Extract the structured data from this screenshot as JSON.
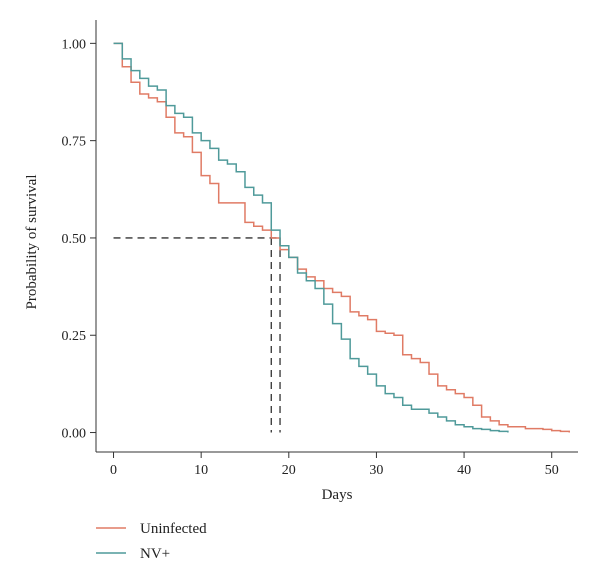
{
  "chart_data": {
    "type": "line",
    "step": true,
    "title": "",
    "xlabel": "Days",
    "ylabel": "Probability of survival",
    "xlim": [
      -2,
      53
    ],
    "ylim": [
      -0.05,
      1.06
    ],
    "xticks": [
      0,
      10,
      20,
      30,
      40,
      50
    ],
    "xtick_labels": [
      "0",
      "10",
      "20",
      "30",
      "40",
      "50"
    ],
    "yticks": [
      0,
      0.25,
      0.5,
      0.75,
      1.0
    ],
    "ytick_labels": [
      "0.00",
      "0.25",
      "0.50",
      "0.75",
      "1.00"
    ],
    "grid": false,
    "legend_position": "bottom-left",
    "median_reference": {
      "y": 0.5,
      "x_values": [
        18,
        19
      ]
    },
    "series": [
      {
        "name": "Uninfected",
        "color": "#e07b65",
        "x": [
          0,
          1,
          2,
          3,
          4,
          5,
          6,
          7,
          8,
          9,
          10,
          11,
          12,
          13,
          14,
          15,
          16,
          17,
          18,
          19,
          20,
          21,
          22,
          23,
          24,
          25,
          26,
          27,
          28,
          29,
          30,
          31,
          32,
          33,
          34,
          35,
          36,
          37,
          38,
          39,
          40,
          41,
          42,
          43,
          44,
          45,
          46,
          47,
          48,
          49,
          50,
          51,
          52
        ],
        "y": [
          1.0,
          0.94,
          0.9,
          0.87,
          0.86,
          0.85,
          0.81,
          0.77,
          0.76,
          0.72,
          0.66,
          0.64,
          0.59,
          0.59,
          0.59,
          0.54,
          0.53,
          0.52,
          0.5,
          0.47,
          0.45,
          0.42,
          0.4,
          0.39,
          0.37,
          0.36,
          0.35,
          0.31,
          0.3,
          0.29,
          0.26,
          0.255,
          0.25,
          0.2,
          0.19,
          0.18,
          0.15,
          0.12,
          0.11,
          0.1,
          0.09,
          0.07,
          0.04,
          0.03,
          0.02,
          0.015,
          0.015,
          0.01,
          0.01,
          0.008,
          0.005,
          0.003,
          0.0
        ]
      },
      {
        "name": "NV+",
        "color": "#4f9a9a",
        "x": [
          0,
          1,
          2,
          3,
          4,
          5,
          6,
          7,
          8,
          9,
          10,
          11,
          12,
          13,
          14,
          15,
          16,
          17,
          18,
          19,
          20,
          21,
          22,
          23,
          24,
          25,
          26,
          27,
          28,
          29,
          30,
          31,
          32,
          33,
          34,
          35,
          36,
          37,
          38,
          39,
          40,
          41,
          42,
          43,
          44,
          45
        ],
        "y": [
          1.0,
          0.96,
          0.93,
          0.91,
          0.89,
          0.88,
          0.84,
          0.82,
          0.81,
          0.77,
          0.75,
          0.73,
          0.7,
          0.69,
          0.67,
          0.63,
          0.61,
          0.59,
          0.52,
          0.48,
          0.45,
          0.41,
          0.39,
          0.37,
          0.33,
          0.28,
          0.24,
          0.19,
          0.17,
          0.15,
          0.12,
          0.1,
          0.09,
          0.07,
          0.06,
          0.06,
          0.05,
          0.04,
          0.03,
          0.02,
          0.015,
          0.01,
          0.008,
          0.005,
          0.003,
          0.0
        ]
      }
    ]
  }
}
